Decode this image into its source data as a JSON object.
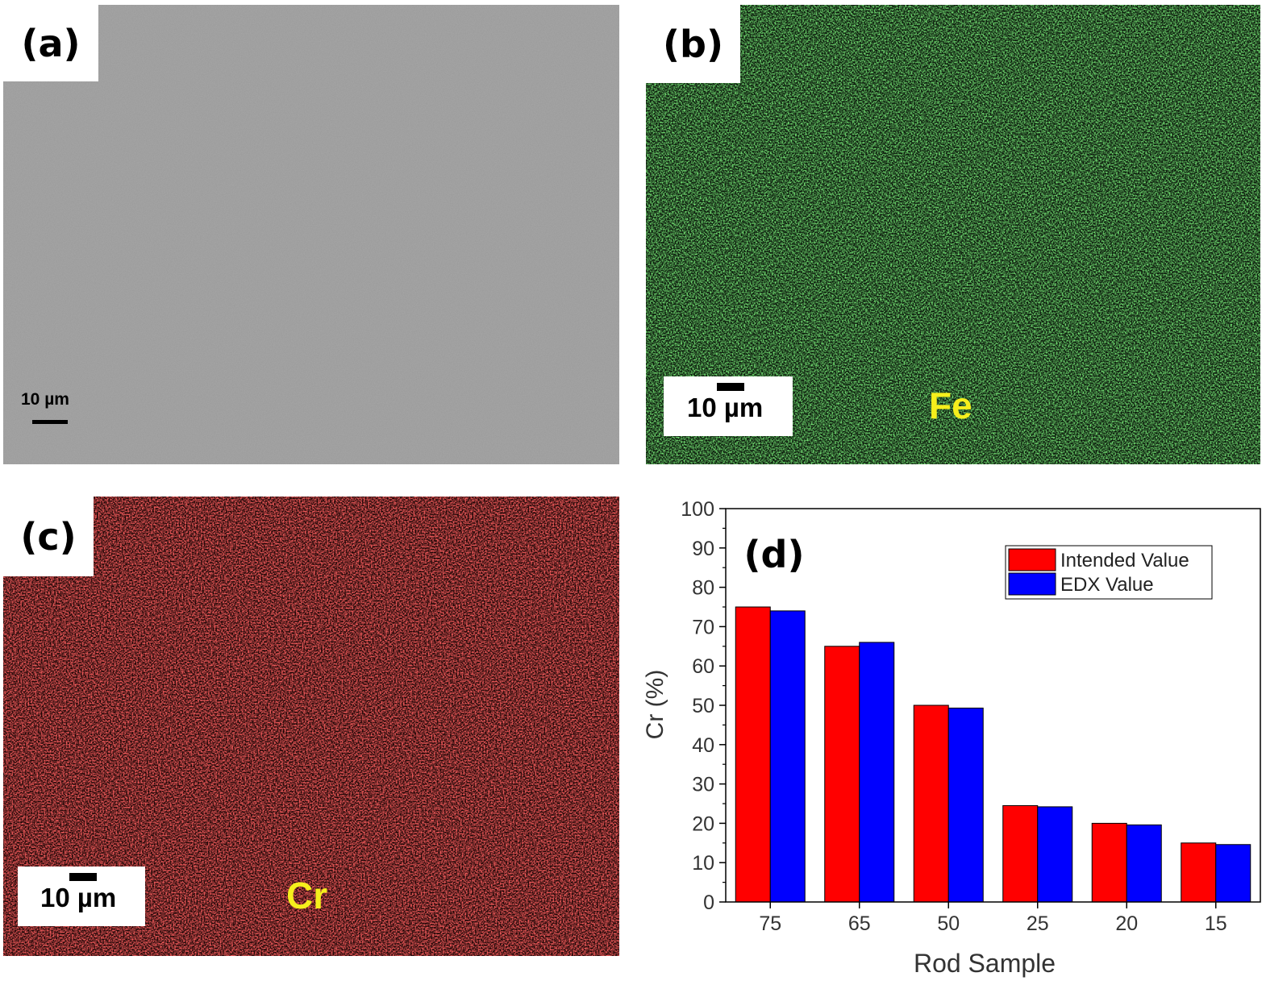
{
  "panels": {
    "a": {
      "label": "(a)",
      "scalebar": "10 µm"
    },
    "b": {
      "label": "(b)",
      "scalebar": "10 µm",
      "element": "Fe"
    },
    "c": {
      "label": "(c)",
      "scalebar": "10 µm",
      "element": "Cr"
    },
    "d": {
      "label": "(d)"
    }
  },
  "colors": {
    "sem_gray": "#9a9a9a",
    "fe_green": "#2fbf2f",
    "cr_red": "#d81c1c",
    "element_label": "#f5ef1c",
    "intended": "#ff0000",
    "edx": "#0000ff"
  },
  "chart_data": {
    "type": "bar",
    "categories": [
      "75",
      "65",
      "50",
      "25",
      "20",
      "15"
    ],
    "series": [
      {
        "name": "Intended Value",
        "values": [
          75,
          65,
          50,
          24.5,
          20,
          15
        ],
        "color": "#ff0000"
      },
      {
        "name": "EDX Value",
        "values": [
          74,
          66,
          49.3,
          24.2,
          19.6,
          14.6
        ],
        "color": "#0000ff"
      }
    ],
    "xlabel": "Rod Sample",
    "ylabel": "Cr (%)",
    "ylim": [
      0,
      100
    ],
    "yticks": [
      0,
      10,
      20,
      30,
      40,
      50,
      60,
      70,
      80,
      90,
      100
    ],
    "legend_position": "top-right",
    "grid": false
  }
}
